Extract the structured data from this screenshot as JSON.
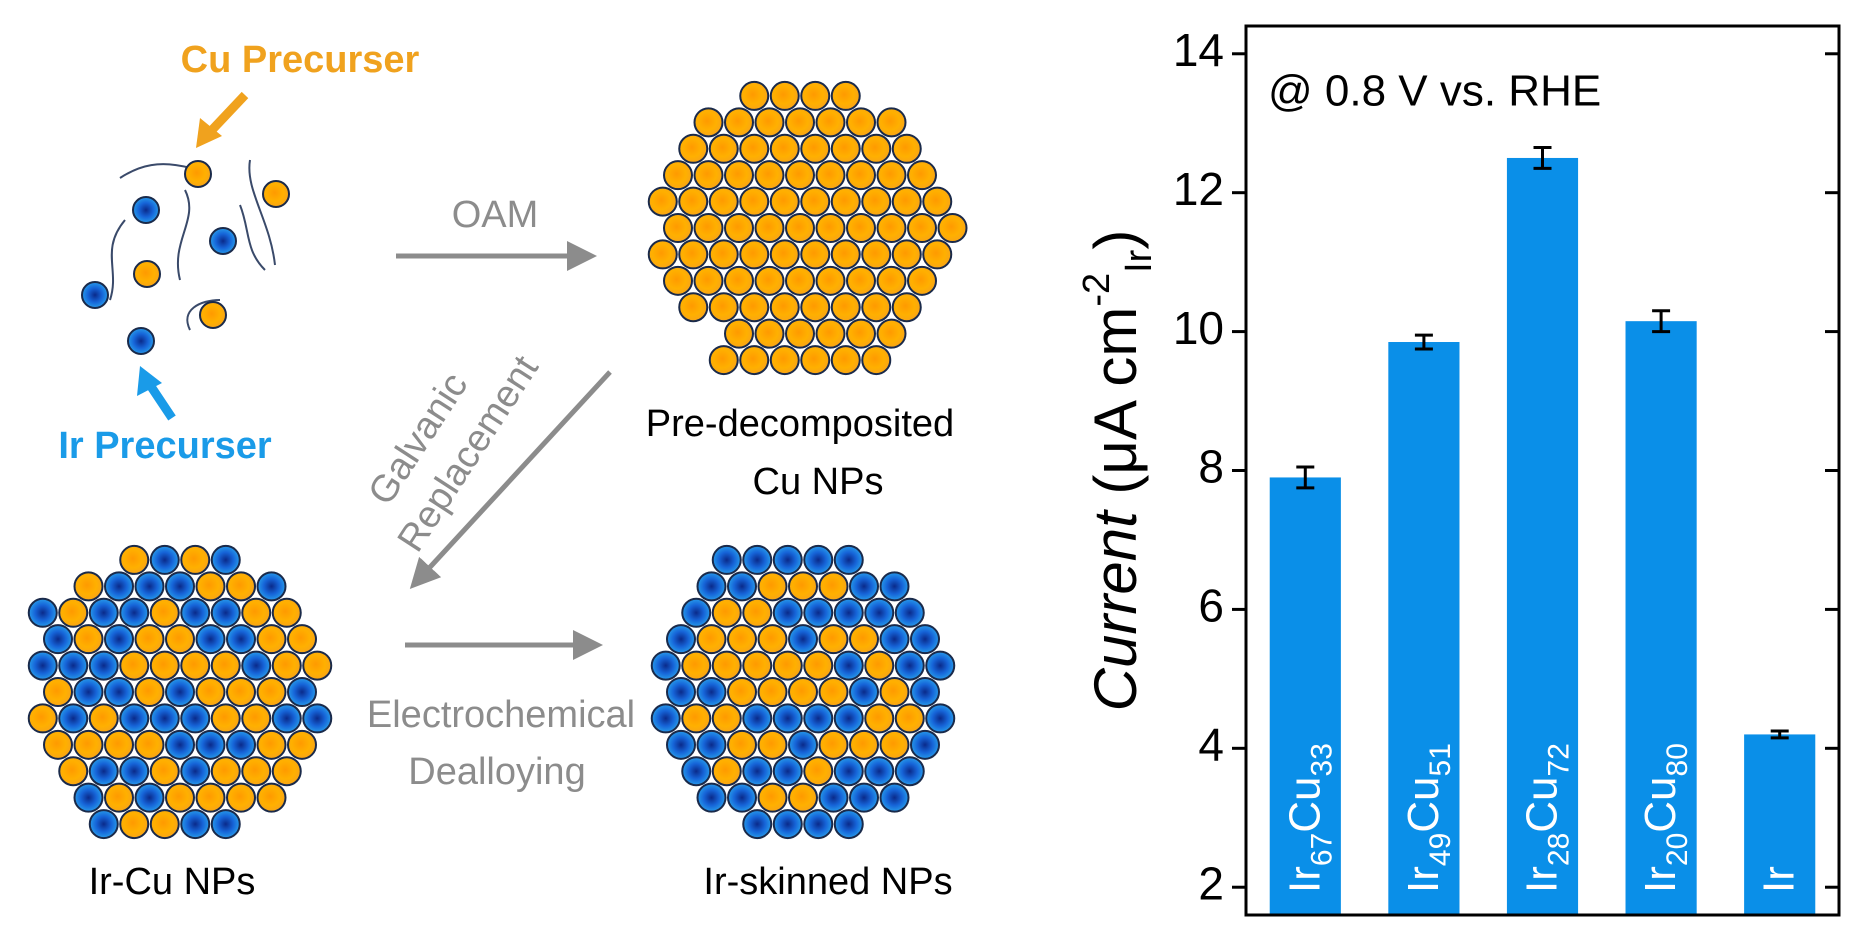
{
  "diagram": {
    "cu_precursor": "Cu Precurser",
    "ir_precursor": "Ir Precurser",
    "oam": "OAM",
    "galvanic": "Galvanic",
    "replacement": "Replacement",
    "predecomposited": "Pre-decomposited",
    "cu_nps": "Cu NPs",
    "electrochemical": "Electrochemical",
    "dealloying": "Dealloying",
    "ircu_nps": "Ir-Cu NPs",
    "irskinned_nps": "Ir-skinned NPs"
  },
  "chart_data": {
    "type": "bar",
    "annotation": "@ 0.8 V vs. RHE",
    "ylabel_parts": [
      "Current",
      " (μA cm",
      "-2",
      "Ir",
      ")"
    ],
    "categories": [
      "Ir67Cu33",
      "Ir49Cu51",
      "Ir28Cu72",
      "Ir20Cu80",
      "Ir"
    ],
    "values": [
      7.9,
      9.85,
      12.5,
      10.15,
      4.2
    ],
    "errors": [
      0.15,
      0.1,
      0.15,
      0.15,
      0.05
    ],
    "color": "#0a8fe8",
    "ylim": [
      1.6,
      14.4
    ],
    "yticks": [
      2,
      4,
      6,
      8,
      10,
      12,
      14
    ],
    "grid": false
  }
}
